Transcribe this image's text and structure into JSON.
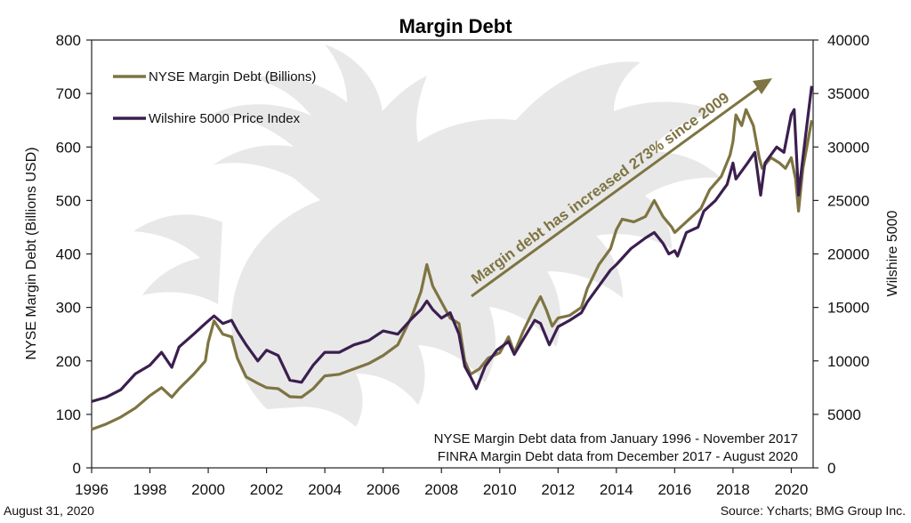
{
  "chart_data": {
    "type": "line",
    "title": "Margin Debt",
    "ylabel": "NYSE Margin Debt (Billions USD)",
    "y2label": "Wilshire 5000",
    "xlim": [
      1996,
      2020.75
    ],
    "ylim": [
      0,
      800
    ],
    "y2lim": [
      0,
      40000
    ],
    "x_ticks": [
      1996,
      1998,
      2000,
      2002,
      2004,
      2006,
      2008,
      2010,
      2012,
      2014,
      2016,
      2018,
      2020
    ],
    "y_ticks": [
      0,
      100,
      200,
      300,
      400,
      500,
      600,
      700,
      800
    ],
    "y2_ticks": [
      0,
      5000,
      10000,
      15000,
      20000,
      25000,
      30000,
      35000,
      40000
    ],
    "legend_position": "top-left",
    "series": [
      {
        "name": "NYSE Margin Debt (Billions)",
        "axis": "left",
        "color": "#7e7442",
        "points": [
          [
            1996.0,
            72
          ],
          [
            1996.5,
            82
          ],
          [
            1997.0,
            95
          ],
          [
            1997.5,
            112
          ],
          [
            1998.0,
            135
          ],
          [
            1998.4,
            150
          ],
          [
            1998.75,
            132
          ],
          [
            1999.0,
            148
          ],
          [
            1999.5,
            175
          ],
          [
            1999.9,
            200
          ],
          [
            2000.0,
            235
          ],
          [
            2000.2,
            275
          ],
          [
            2000.5,
            250
          ],
          [
            2000.8,
            245
          ],
          [
            2001.0,
            205
          ],
          [
            2001.3,
            170
          ],
          [
            2001.7,
            158
          ],
          [
            2002.0,
            150
          ],
          [
            2002.4,
            148
          ],
          [
            2002.8,
            133
          ],
          [
            2003.2,
            132
          ],
          [
            2003.6,
            148
          ],
          [
            2004.0,
            172
          ],
          [
            2004.5,
            175
          ],
          [
            2005.0,
            185
          ],
          [
            2005.5,
            195
          ],
          [
            2006.0,
            210
          ],
          [
            2006.5,
            230
          ],
          [
            2007.0,
            285
          ],
          [
            2007.3,
            330
          ],
          [
            2007.5,
            380
          ],
          [
            2007.7,
            340
          ],
          [
            2008.0,
            310
          ],
          [
            2008.3,
            280
          ],
          [
            2008.6,
            270
          ],
          [
            2008.8,
            200
          ],
          [
            2009.0,
            175
          ],
          [
            2009.3,
            185
          ],
          [
            2009.6,
            205
          ],
          [
            2010.0,
            215
          ],
          [
            2010.3,
            245
          ],
          [
            2010.5,
            215
          ],
          [
            2010.8,
            255
          ],
          [
            2011.2,
            300
          ],
          [
            2011.4,
            320
          ],
          [
            2011.6,
            295
          ],
          [
            2011.8,
            265
          ],
          [
            2012.0,
            280
          ],
          [
            2012.4,
            285
          ],
          [
            2012.8,
            300
          ],
          [
            2013.0,
            335
          ],
          [
            2013.4,
            380
          ],
          [
            2013.8,
            410
          ],
          [
            2014.0,
            445
          ],
          [
            2014.2,
            465
          ],
          [
            2014.6,
            460
          ],
          [
            2015.0,
            470
          ],
          [
            2015.3,
            500
          ],
          [
            2015.6,
            470
          ],
          [
            2015.9,
            450
          ],
          [
            2016.0,
            440
          ],
          [
            2016.3,
            455
          ],
          [
            2016.6,
            470
          ],
          [
            2016.9,
            485
          ],
          [
            2017.2,
            520
          ],
          [
            2017.6,
            545
          ],
          [
            2017.9,
            585
          ],
          [
            2018.0,
            610
          ],
          [
            2018.1,
            660
          ],
          [
            2018.3,
            640
          ],
          [
            2018.45,
            670
          ],
          [
            2018.7,
            640
          ],
          [
            2018.9,
            580
          ],
          [
            2019.0,
            560
          ],
          [
            2019.3,
            580
          ],
          [
            2019.6,
            570
          ],
          [
            2019.8,
            560
          ],
          [
            2020.0,
            580
          ],
          [
            2020.15,
            540
          ],
          [
            2020.25,
            480
          ],
          [
            2020.4,
            560
          ],
          [
            2020.6,
            620
          ],
          [
            2020.7,
            650
          ]
        ]
      },
      {
        "name": "Wilshire 5000 Price Index",
        "axis": "right",
        "color": "#3b1f4f",
        "points": [
          [
            1996.0,
            6200
          ],
          [
            1996.5,
            6600
          ],
          [
            1997.0,
            7300
          ],
          [
            1997.5,
            8800
          ],
          [
            1998.0,
            9600
          ],
          [
            1998.4,
            10800
          ],
          [
            1998.75,
            9400
          ],
          [
            1999.0,
            11300
          ],
          [
            1999.5,
            12500
          ],
          [
            1999.9,
            13500
          ],
          [
            2000.2,
            14200
          ],
          [
            2000.5,
            13500
          ],
          [
            2000.8,
            13800
          ],
          [
            2001.0,
            12800
          ],
          [
            2001.3,
            11500
          ],
          [
            2001.7,
            10000
          ],
          [
            2002.0,
            11000
          ],
          [
            2002.4,
            10500
          ],
          [
            2002.8,
            8200
          ],
          [
            2003.2,
            8000
          ],
          [
            2003.6,
            9600
          ],
          [
            2004.0,
            10800
          ],
          [
            2004.5,
            10800
          ],
          [
            2005.0,
            11500
          ],
          [
            2005.5,
            11900
          ],
          [
            2006.0,
            12800
          ],
          [
            2006.5,
            12500
          ],
          [
            2007.0,
            14000
          ],
          [
            2007.3,
            14800
          ],
          [
            2007.5,
            15600
          ],
          [
            2007.7,
            14800
          ],
          [
            2008.0,
            14000
          ],
          [
            2008.3,
            14500
          ],
          [
            2008.6,
            12500
          ],
          [
            2008.8,
            9500
          ],
          [
            2009.0,
            8500
          ],
          [
            2009.2,
            7400
          ],
          [
            2009.5,
            9500
          ],
          [
            2009.9,
            11000
          ],
          [
            2010.3,
            11800
          ],
          [
            2010.5,
            10600
          ],
          [
            2010.8,
            12000
          ],
          [
            2011.2,
            13800
          ],
          [
            2011.4,
            13500
          ],
          [
            2011.7,
            11500
          ],
          [
            2012.0,
            13200
          ],
          [
            2012.4,
            13800
          ],
          [
            2012.8,
            14500
          ],
          [
            2013.0,
            15500
          ],
          [
            2013.4,
            17000
          ],
          [
            2013.8,
            18500
          ],
          [
            2014.0,
            19000
          ],
          [
            2014.5,
            20500
          ],
          [
            2015.0,
            21500
          ],
          [
            2015.3,
            22000
          ],
          [
            2015.6,
            21000
          ],
          [
            2015.8,
            20000
          ],
          [
            2016.0,
            20300
          ],
          [
            2016.1,
            19800
          ],
          [
            2016.4,
            22000
          ],
          [
            2016.8,
            22500
          ],
          [
            2017.0,
            24000
          ],
          [
            2017.4,
            25000
          ],
          [
            2017.8,
            26500
          ],
          [
            2018.0,
            28500
          ],
          [
            2018.1,
            27000
          ],
          [
            2018.5,
            28500
          ],
          [
            2018.75,
            29500
          ],
          [
            2018.95,
            25500
          ],
          [
            2019.1,
            28500
          ],
          [
            2019.5,
            30000
          ],
          [
            2019.75,
            29500
          ],
          [
            2020.0,
            33000
          ],
          [
            2020.1,
            33500
          ],
          [
            2020.25,
            25500
          ],
          [
            2020.4,
            29000
          ],
          [
            2020.6,
            33500
          ],
          [
            2020.7,
            35700
          ]
        ]
      }
    ],
    "annotations": [
      {
        "text": "Margin debt has increased 273% since 2009",
        "arrow": true
      },
      {
        "text": "NYSE Margin Debt data from January 1996 - November 2017"
      },
      {
        "text": "FINRA Margin Debt data from December 2017 - August 2020"
      }
    ]
  },
  "footer": {
    "date": "August 31, 2020",
    "source": "Source: Ycharts; BMG Group Inc."
  },
  "colors": {
    "margin_debt": "#7e7442",
    "wilshire": "#3b1f4f",
    "watermark": "#e4e4e4",
    "axis": "#222222"
  }
}
